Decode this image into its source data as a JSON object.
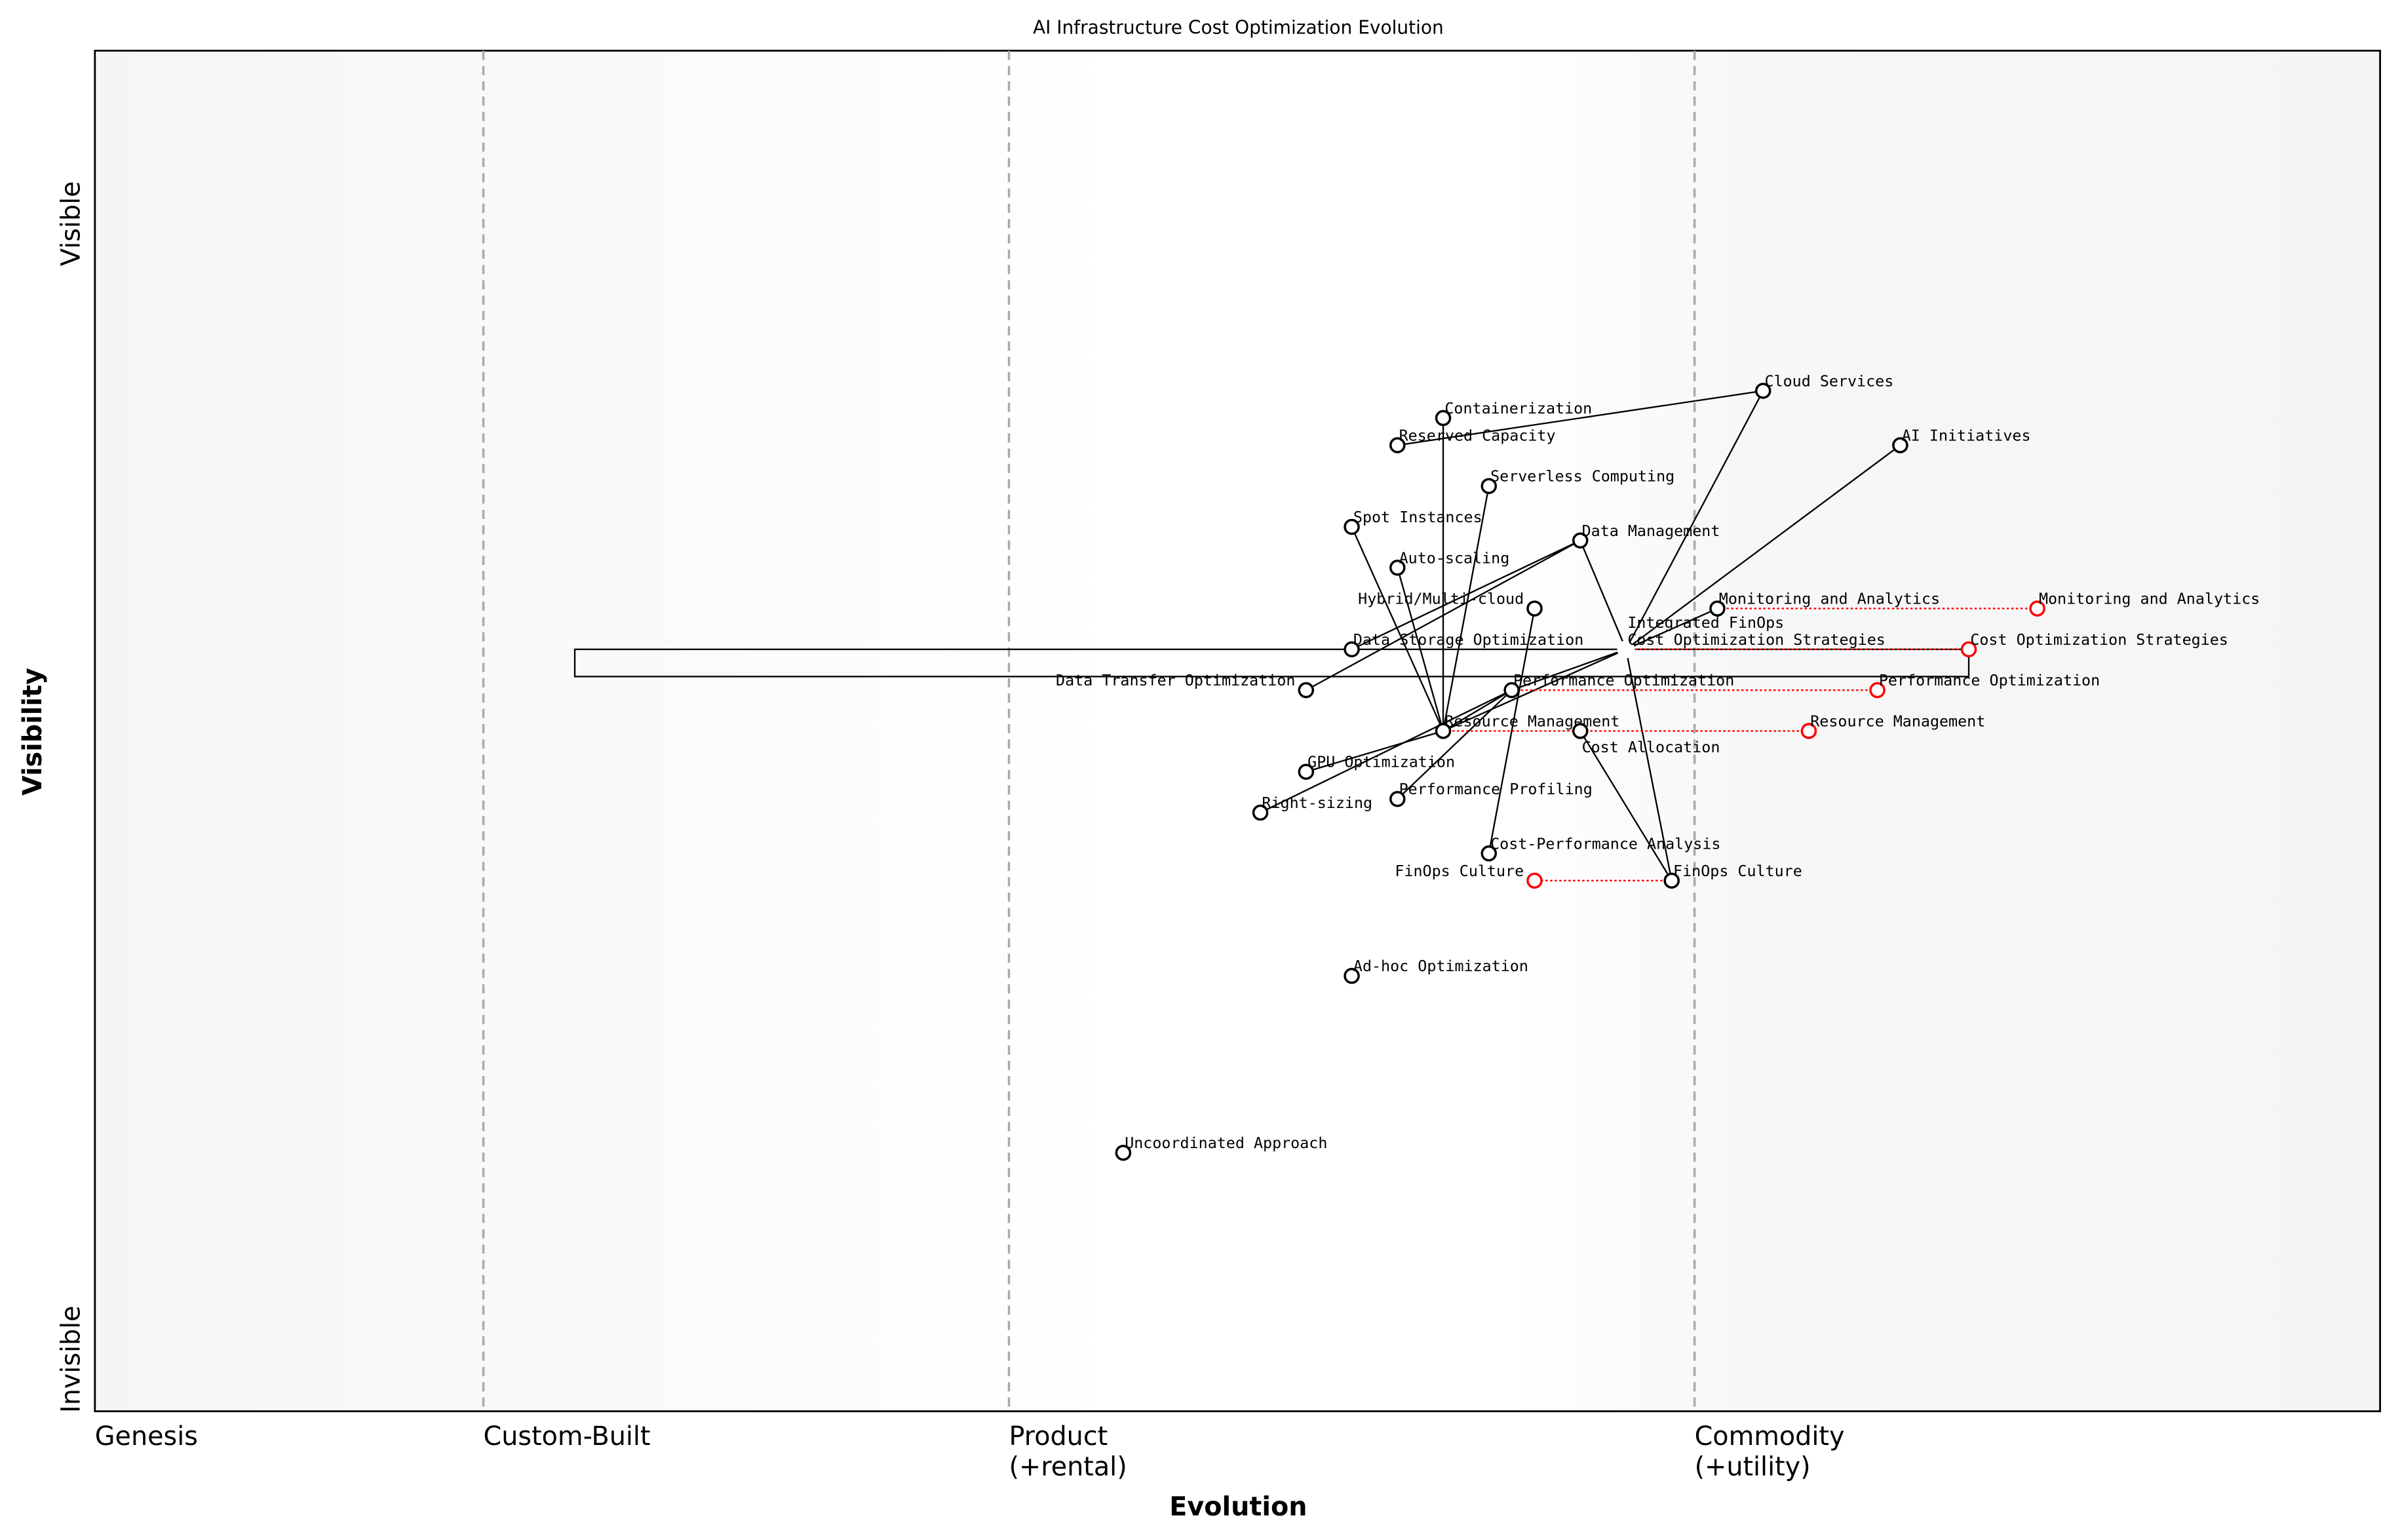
{
  "title": "AI Infrastructure Cost Optimization Evolution",
  "x_axis": {
    "label": "Evolution",
    "stages": [
      {
        "lines": [
          "Genesis"
        ],
        "evolution": 0.0
      },
      {
        "lines": [
          "Custom-Built"
        ],
        "evolution": 0.17
      },
      {
        "lines": [
          "Product",
          "(+rental)"
        ],
        "evolution": 0.4
      },
      {
        "lines": [
          "Commodity",
          "(+utility)"
        ],
        "evolution": 0.7
      }
    ]
  },
  "y_axis": {
    "label": "Visibility",
    "top": "Visible",
    "bottom": "Invisible"
  },
  "colors": {
    "component": "#000000",
    "evolved": "#ff0000",
    "stage_line": "#aaaaaa",
    "background_edge": "#f5f5f5",
    "background_mid": "#ffffff"
  },
  "components": [
    {
      "name": "Cloud Services",
      "evolution": 0.73,
      "visibility": 0.75
    },
    {
      "name": "AI Initiatives",
      "evolution": 0.79,
      "visibility": 0.71
    },
    {
      "name": "Containerization",
      "evolution": 0.59,
      "visibility": 0.73
    },
    {
      "name": "Reserved Capacity",
      "evolution": 0.57,
      "visibility": 0.71
    },
    {
      "name": "Serverless Computing",
      "evolution": 0.61,
      "visibility": 0.68
    },
    {
      "name": "Spot Instances",
      "evolution": 0.55,
      "visibility": 0.65
    },
    {
      "name": "Data Management",
      "evolution": 0.65,
      "visibility": 0.64
    },
    {
      "name": "Auto-scaling",
      "evolution": 0.57,
      "visibility": 0.62
    },
    {
      "name": "Hybrid/Multi-cloud",
      "evolution": 0.63,
      "visibility": 0.59
    },
    {
      "name": "Monitoring and Analytics",
      "evolution": 0.71,
      "visibility": 0.59
    },
    {
      "name": "Data Storage Optimization",
      "evolution": 0.55,
      "visibility": 0.56
    },
    {
      "name": "Integrated FinOps",
      "evolution": 0.67,
      "visibility": 0.56,
      "hidden_marker": true
    },
    {
      "name": "Cost Optimization Strategies",
      "evolution": 0.67,
      "visibility": 0.56,
      "hidden_marker": true
    },
    {
      "name": "Data Transfer Optimization",
      "evolution": 0.53,
      "visibility": 0.53
    },
    {
      "name": "Performance Optimization",
      "evolution": 0.62,
      "visibility": 0.53
    },
    {
      "name": "Resource Management",
      "evolution": 0.59,
      "visibility": 0.5
    },
    {
      "name": "Cost Allocation",
      "evolution": 0.65,
      "visibility": 0.5
    },
    {
      "name": "GPU Optimization",
      "evolution": 0.53,
      "visibility": 0.47
    },
    {
      "name": "Performance Profiling",
      "evolution": 0.57,
      "visibility": 0.45
    },
    {
      "name": "Right-sizing",
      "evolution": 0.51,
      "visibility": 0.44
    },
    {
      "name": "Cost-Performance Analysis",
      "evolution": 0.61,
      "visibility": 0.41
    },
    {
      "name": "FinOps Culture",
      "evolution": 0.69,
      "visibility": 0.39
    },
    {
      "name": "Ad-hoc Optimization",
      "evolution": 0.55,
      "visibility": 0.32
    },
    {
      "name": "Uncoordinated Approach",
      "evolution": 0.45,
      "visibility": 0.19
    }
  ],
  "evolved": [
    {
      "name": "Monitoring and Analytics",
      "from_evolution": 0.71,
      "evolution": 0.85,
      "visibility": 0.59
    },
    {
      "name": "Cost Optimization Strategies",
      "from_evolution": 0.67,
      "evolution": 0.82,
      "visibility": 0.56
    },
    {
      "name": "Performance Optimization",
      "from_evolution": 0.62,
      "evolution": 0.78,
      "visibility": 0.53
    },
    {
      "name": "Resource Management",
      "from_evolution": 0.59,
      "evolution": 0.75,
      "visibility": 0.5
    },
    {
      "name": "FinOps Culture",
      "from_evolution": 0.69,
      "evolution": 0.63,
      "visibility": 0.39
    }
  ],
  "pipeline": {
    "evolution_start": 0.21,
    "evolution_end": 0.82,
    "visibility_top": 0.56,
    "visibility_bottom": 0.54
  },
  "links": [
    [
      "Cloud Services",
      "Reserved Capacity"
    ],
    [
      "Cloud Services",
      "Integrated FinOps"
    ],
    [
      "AI Initiatives",
      "Integrated FinOps"
    ],
    [
      "Monitoring and Analytics",
      "Integrated FinOps"
    ],
    [
      "Data Management",
      "Integrated FinOps"
    ],
    [
      "Integrated FinOps",
      "FinOps Culture"
    ],
    [
      "Integrated FinOps",
      "Performance Optimization"
    ],
    [
      "Integrated FinOps",
      "Resource Management"
    ],
    [
      "Containerization",
      "Resource Management"
    ],
    [
      "Spot Instances",
      "Resource Management"
    ],
    [
      "Auto-scaling",
      "Resource Management"
    ],
    [
      "Serverless Computing",
      "Resource Management"
    ],
    [
      "Data Management",
      "Data Storage Optimization"
    ],
    [
      "Data Management",
      "Data Transfer Optimization"
    ],
    [
      "Hybrid/Multi-cloud",
      "Cost-Performance Analysis"
    ],
    [
      "Performance Optimization",
      "Resource Management"
    ],
    [
      "Performance Optimization",
      "Right-sizing"
    ],
    [
      "Performance Optimization",
      "Performance Profiling"
    ],
    [
      "Resource Management",
      "GPU Optimization"
    ],
    [
      "Cost Allocation",
      "FinOps Culture"
    ]
  ]
}
